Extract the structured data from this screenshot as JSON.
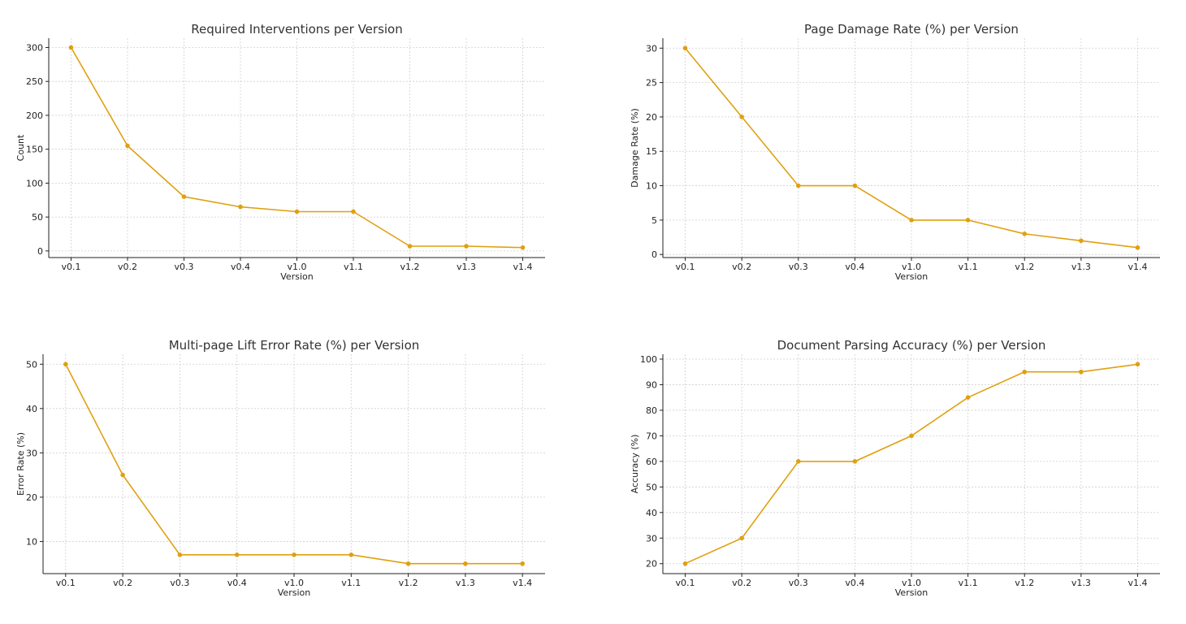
{
  "colors": {
    "line": "#E0A010",
    "text": "#222222",
    "grid": "#cfcfcf"
  },
  "chart_data": [
    {
      "type": "line",
      "title": "Required Interventions per Version",
      "xlabel": "Version",
      "ylabel": "Count",
      "categories": [
        "v0.1",
        "v0.2",
        "v0.3",
        "v0.4",
        "v1.0",
        "v1.1",
        "v1.2",
        "v1.3",
        "v1.4"
      ],
      "values": [
        300,
        155,
        80,
        65,
        58,
        58,
        7,
        7,
        5
      ],
      "ylim": [
        -9.75,
        313.75
      ],
      "yticks": [
        0,
        50,
        100,
        150,
        200,
        250,
        300
      ],
      "grid": true
    },
    {
      "type": "line",
      "title": "Page Damage Rate (%) per Version",
      "xlabel": "Version",
      "ylabel": "Damage Rate (%)",
      "categories": [
        "v0.1",
        "v0.2",
        "v0.3",
        "v0.4",
        "v1.0",
        "v1.1",
        "v1.2",
        "v1.3",
        "v1.4"
      ],
      "values": [
        30,
        20,
        10,
        10,
        5,
        5,
        3,
        2,
        1
      ],
      "ylim": [
        -0.45,
        31.45
      ],
      "yticks": [
        0,
        5,
        10,
        15,
        20,
        25,
        30
      ],
      "grid": true
    },
    {
      "type": "line",
      "title": "Multi-page Lift Error Rate (%) per Version",
      "xlabel": "Version",
      "ylabel": "Error Rate (%)",
      "categories": [
        "v0.1",
        "v0.2",
        "v0.3",
        "v0.4",
        "v1.0",
        "v1.1",
        "v1.2",
        "v1.3",
        "v1.4"
      ],
      "values": [
        50,
        25,
        7,
        7,
        7,
        7,
        5,
        5,
        5
      ],
      "ylim": [
        2.75,
        52.25
      ],
      "yticks": [
        10,
        20,
        30,
        40,
        50
      ],
      "grid": true
    },
    {
      "type": "line",
      "title": "Document Parsing Accuracy (%) per Version",
      "xlabel": "Version",
      "ylabel": "Accuracy (%)",
      "categories": [
        "v0.1",
        "v0.2",
        "v0.3",
        "v0.4",
        "v1.0",
        "v1.1",
        "v1.2",
        "v1.3",
        "v1.4"
      ],
      "values": [
        20,
        30,
        60,
        60,
        70,
        85,
        95,
        95,
        98
      ],
      "ylim": [
        16.1,
        101.9
      ],
      "yticks": [
        20,
        30,
        40,
        50,
        60,
        70,
        80,
        90,
        100
      ],
      "grid": true
    }
  ]
}
